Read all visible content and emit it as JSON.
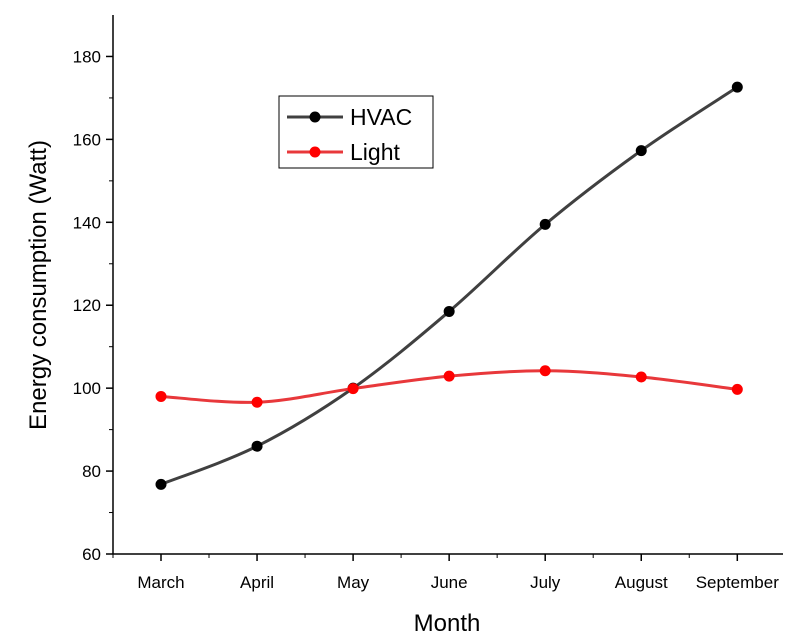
{
  "chart_data": {
    "type": "line",
    "title": "",
    "xlabel": "Month",
    "ylabel": "Energy consumption (Watt)",
    "categories": [
      "March",
      "April",
      "May",
      "June",
      "July",
      "August",
      "September"
    ],
    "ylim": [
      60,
      190
    ],
    "yticks": [
      60,
      80,
      100,
      120,
      140,
      160,
      180
    ],
    "grid": false,
    "legend_position": "top-left",
    "series": [
      {
        "name": "HVAC",
        "color": "#404040",
        "marker_color": "#000000",
        "values": [
          76.8,
          86.0,
          100.0,
          118.5,
          139.5,
          157.3,
          172.6
        ]
      },
      {
        "name": "Light",
        "color": "#e8383b",
        "marker_color": "#ff0000",
        "values": [
          98.0,
          96.6,
          99.9,
          102.9,
          104.2,
          102.7,
          99.7
        ]
      }
    ]
  }
}
